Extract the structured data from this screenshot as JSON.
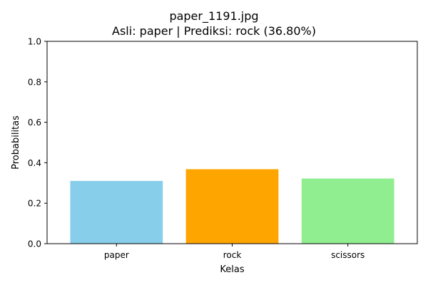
{
  "chart_data": {
    "type": "bar",
    "title_lines": [
      "paper_1191.jpg",
      "Asli: paper | Prediksi: rock (36.80%)"
    ],
    "xlabel": "Kelas",
    "ylabel": "Probabilitas",
    "categories": [
      "paper",
      "rock",
      "scissors"
    ],
    "values": [
      0.31,
      0.368,
      0.322
    ],
    "colors": [
      "#87ceeb",
      "#ffa500",
      "#90ee90"
    ],
    "ylim": [
      0,
      1.0
    ],
    "yticks": [
      0.0,
      0.2,
      0.4,
      0.6,
      0.8,
      1.0
    ],
    "ytick_labels": [
      "0.0",
      "0.2",
      "0.4",
      "0.6",
      "0.8",
      "1.0"
    ],
    "grid": false,
    "legend": "none"
  }
}
